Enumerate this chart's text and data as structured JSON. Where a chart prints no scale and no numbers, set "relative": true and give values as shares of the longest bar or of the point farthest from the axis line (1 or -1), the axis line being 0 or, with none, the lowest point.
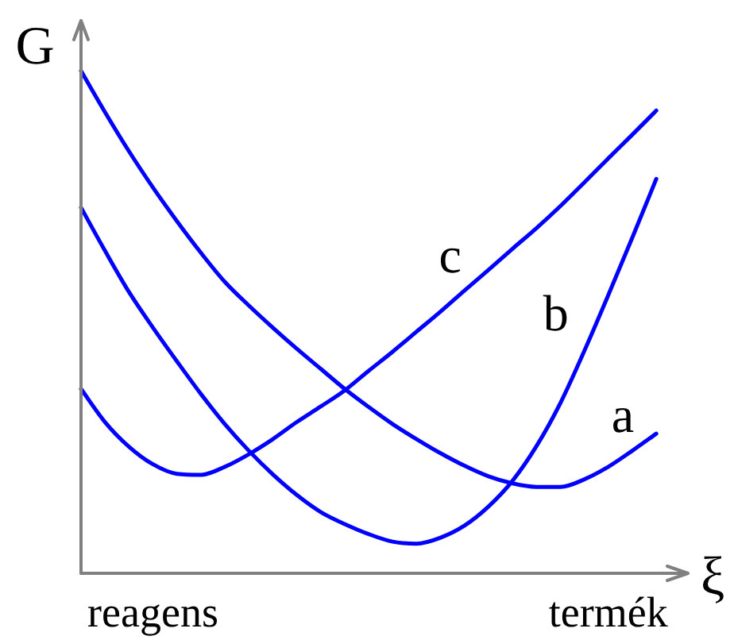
{
  "chart_data": {
    "type": "line",
    "relative": true,
    "xlabel": "ξ",
    "ylabel": "G",
    "categories": [
      null,
      null,
      null,
      "reagens",
      null,
      null,
      null,
      null,
      null,
      null,
      null,
      null,
      null,
      null,
      null,
      null,
      null,
      null,
      null,
      null,
      null,
      null,
      "termék",
      null,
      null
    ],
    "series": [
      {
        "name": "a",
        "color": "#0000ff",
        "values": [
          1,
          0.918,
          0.84,
          0.768,
          0.701,
          0.638,
          0.58,
          0.533,
          0.489,
          0.447,
          0.407,
          0.367,
          0.331,
          0.297,
          0.267,
          0.239,
          0.214,
          0.193,
          0.179,
          0.172,
          0.172,
          0.187,
          0.212,
          0.244,
          0.278
        ]
      },
      {
        "name": "b",
        "color": "#0000ff",
        "values": [
          0.728,
          0.642,
          0.56,
          0.489,
          0.422,
          0.357,
          0.297,
          0.244,
          0.197,
          0.156,
          0.122,
          0.098,
          0.078,
          0.063,
          0.059,
          0.071,
          0.095,
          0.133,
          0.184,
          0.253,
          0.339,
          0.443,
          0.554,
          0.668,
          0.785
        ]
      },
      {
        "name": "c",
        "color": "#0000ff",
        "values": [
          0.367,
          0.301,
          0.252,
          0.217,
          0.198,
          0.196,
          0.212,
          0.237,
          0.267,
          0.301,
          0.332,
          0.364,
          0.403,
          0.441,
          0.481,
          0.521,
          0.563,
          0.604,
          0.646,
          0.687,
          0.731,
          0.778,
          0.826,
          0.873,
          0.921
        ]
      }
    ],
    "tick_labels": "x",
    "legend": false,
    "grid": false
  }
}
